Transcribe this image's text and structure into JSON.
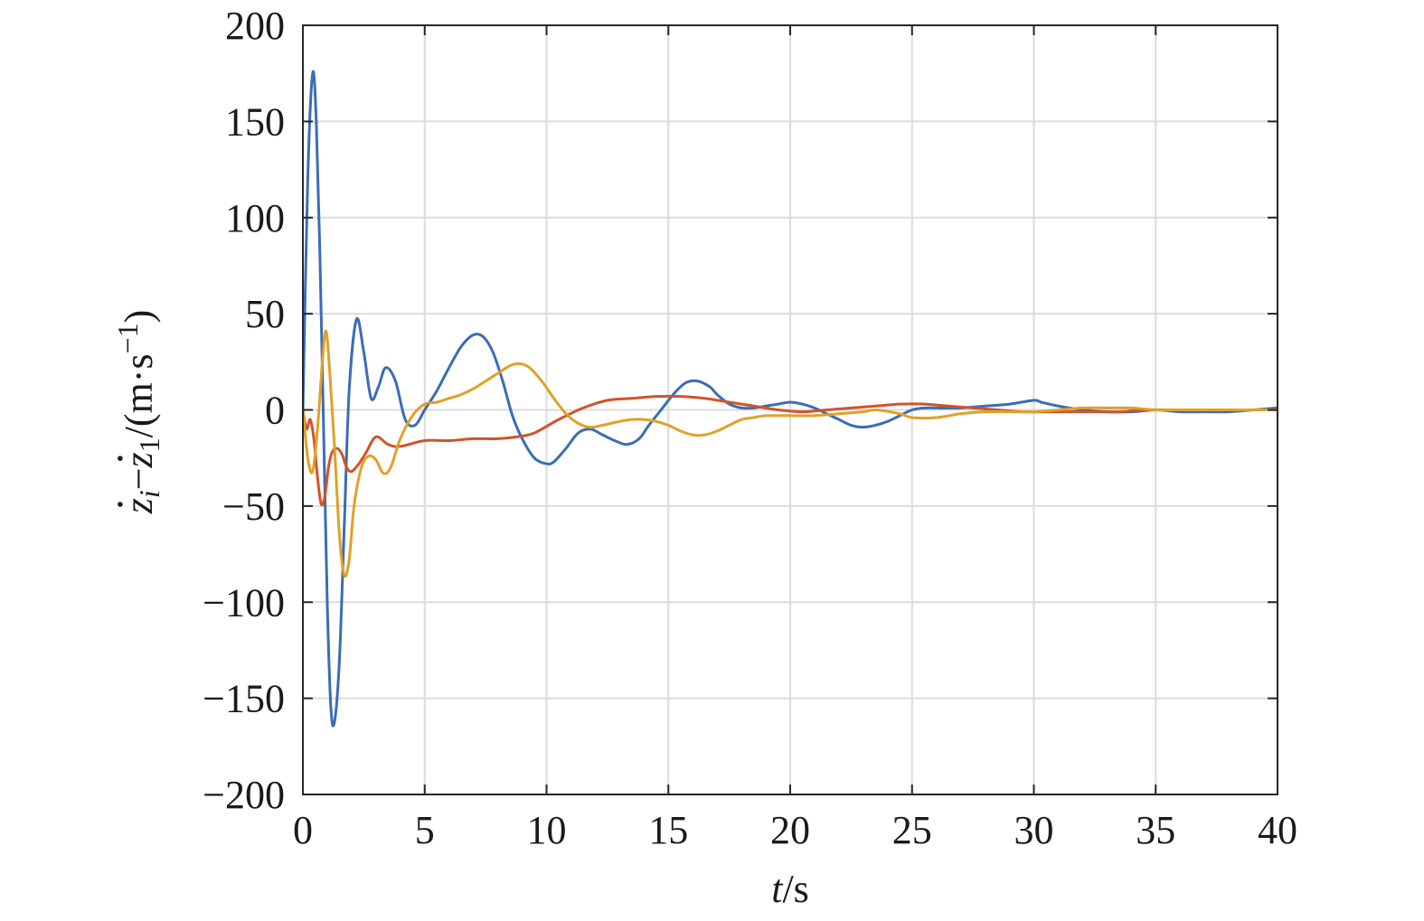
{
  "chart_data": {
    "type": "line",
    "title": "",
    "xlabel": {
      "var": "t",
      "unit": "/s"
    },
    "ylabel": {
      "lhs_a": "z",
      "lhs_a_sub": "i",
      "minus": "−",
      "lhs_b": "z",
      "lhs_b_sub": "1",
      "unit_open": "/(m·s",
      "unit_exp": "−1",
      "unit_close": ")"
    },
    "xlim": [
      0,
      40
    ],
    "ylim": [
      -200,
      200
    ],
    "xticks": [
      0,
      5,
      10,
      15,
      20,
      25,
      30,
      35,
      40
    ],
    "yticks": [
      -200,
      -150,
      -100,
      -50,
      0,
      50,
      100,
      150,
      200
    ],
    "xtick_labels": [
      "0",
      "5",
      "10",
      "15",
      "20",
      "25",
      "30",
      "35",
      "40"
    ],
    "ytick_labels": [
      "−200",
      "−150",
      "−100",
      "−50",
      "0",
      "50",
      "100",
      "150",
      "200"
    ],
    "grid": true,
    "series": [
      {
        "color": "#3a6db5",
        "x": [
          0,
          0.2,
          0.4,
          0.55,
          0.7,
          0.85,
          1.0,
          1.15,
          1.3,
          1.5,
          1.7,
          1.9,
          2.2,
          2.5,
          2.8,
          3.1,
          3.4,
          3.8,
          4.2,
          4.6,
          5.0,
          5.5,
          6.0,
          6.5,
          7.0,
          7.4,
          7.8,
          8.2,
          8.6,
          9.0,
          9.5,
          10.0,
          10.3,
          10.8,
          11.3,
          11.8,
          12.3,
          12.8,
          13.3,
          13.8,
          14.2,
          14.7,
          15.2,
          15.7,
          16.2,
          16.7,
          17.0,
          17.5,
          18.0,
          18.5,
          19.0,
          19.5,
          20.0,
          20.5,
          21.0,
          21.5,
          22.0,
          22.5,
          23.0,
          23.5,
          24.0,
          24.5,
          25.0,
          25.5,
          26.0,
          27.0,
          28.0,
          29.0,
          30.0,
          30.3,
          31.0,
          32.0,
          33.0,
          34.0,
          35.0,
          36.0,
          37.0,
          38.0,
          39.0,
          40.0
        ],
        "y": [
          0,
          120,
          175,
          150,
          80,
          -10,
          -100,
          -155,
          -162,
          -130,
          -60,
          10,
          47,
          30,
          6,
          12,
          22,
          15,
          -5,
          -8,
          0,
          10,
          22,
          33,
          39,
          38,
          30,
          15,
          -3,
          -15,
          -25,
          -28,
          -27,
          -20,
          -12,
          -10,
          -13,
          -16,
          -18,
          -15,
          -8,
          0,
          8,
          14,
          15,
          12,
          8,
          3,
          1,
          1,
          2,
          3,
          4,
          3,
          1,
          -2,
          -5,
          -8,
          -9,
          -8,
          -6,
          -3,
          0,
          1,
          1,
          1,
          2,
          3,
          5,
          4,
          2,
          0,
          -1,
          -1,
          0,
          -1,
          -1,
          -1,
          0,
          1
        ]
      },
      {
        "color": "#d0542b",
        "x": [
          0,
          0.15,
          0.3,
          0.45,
          0.6,
          0.75,
          0.9,
          1.05,
          1.2,
          1.4,
          1.6,
          1.8,
          2.0,
          2.3,
          2.6,
          3.0,
          3.5,
          4.0,
          5.0,
          6.0,
          7.0,
          8.0,
          8.8,
          9.5,
          10.5,
          11.5,
          12.5,
          13.5,
          14.5,
          15.5,
          16.5,
          17.5,
          18.5,
          19.5,
          20.5,
          21.5,
          22.5,
          23.5,
          24.5,
          25.5,
          26.5,
          27.5,
          28.5,
          29.5,
          30.5,
          31.5,
          32.5,
          33.5,
          34.5,
          35.5,
          36.5,
          37.5,
          38.5,
          40.0
        ],
        "y": [
          0,
          -10,
          -5,
          -15,
          -35,
          -49,
          -45,
          -30,
          -22,
          -20,
          -23,
          -30,
          -32,
          -28,
          -22,
          -14,
          -18,
          -19,
          -16,
          -16,
          -15,
          -15,
          -14,
          -12,
          -5,
          1,
          5,
          6,
          7,
          7,
          6,
          4,
          2,
          0,
          -1,
          0,
          1,
          2,
          3,
          3,
          2,
          1,
          0,
          -1,
          -1,
          -1,
          -1,
          -1,
          0,
          0,
          0,
          0,
          0,
          0
        ]
      },
      {
        "color": "#e0a128",
        "x": [
          0,
          0.2,
          0.4,
          0.6,
          0.8,
          0.95,
          1.1,
          1.3,
          1.5,
          1.7,
          1.9,
          2.1,
          2.4,
          2.7,
          3.0,
          3.3,
          3.6,
          4.0,
          4.5,
          5.0,
          5.5,
          6.0,
          6.5,
          7.0,
          7.5,
          8.0,
          8.5,
          8.9,
          9.3,
          9.8,
          10.3,
          10.8,
          11.3,
          11.8,
          12.3,
          13.0,
          13.5,
          14.0,
          14.5,
          15.0,
          15.5,
          16.0,
          16.5,
          17.0,
          17.5,
          18.0,
          18.5,
          19.0,
          20.0,
          21.0,
          22.0,
          23.0,
          23.5,
          24.5,
          25.0,
          26.0,
          27.0,
          28.0,
          29.0,
          30.0,
          31.0,
          32.0,
          33.0,
          34.0,
          35.0,
          36.0,
          37.0,
          38.0,
          39.0,
          40.0
        ],
        "y": [
          0,
          -25,
          -32,
          -10,
          25,
          41,
          20,
          -20,
          -65,
          -86,
          -78,
          -50,
          -30,
          -24,
          -26,
          -33,
          -30,
          -15,
          -3,
          3,
          4,
          6,
          8,
          11,
          15,
          19,
          23,
          24,
          22,
          15,
          6,
          -2,
          -7,
          -9,
          -8,
          -6,
          -5,
          -5,
          -6,
          -8,
          -11,
          -13,
          -13,
          -11,
          -8,
          -5,
          -4,
          -3,
          -3,
          -3,
          -2,
          -1,
          0,
          -2,
          -4,
          -4,
          -2,
          -1,
          -1,
          -1,
          0,
          1,
          1,
          1,
          0,
          0,
          0,
          0,
          0,
          0
        ]
      }
    ]
  }
}
